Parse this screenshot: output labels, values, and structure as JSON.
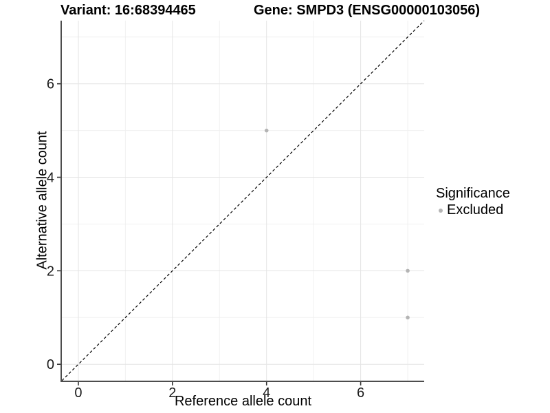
{
  "figure": {
    "title_left": "Variant: 16:68394465",
    "title_right": "Gene: SMPD3 (ENSG00000103056)",
    "x_axis_label": "Reference allele count",
    "y_axis_label": "Alternative allele count"
  },
  "legend": {
    "title": "Significance",
    "items": [
      {
        "label": "Excluded",
        "color": "#b4b4b4"
      }
    ]
  },
  "chart_data": {
    "type": "scatter",
    "title_left": "Variant: 16:68394465",
    "title_right": "Gene: SMPD3 (ENSG00000103056)",
    "xlabel": "Reference allele count",
    "ylabel": "Alternative allele count",
    "xlim": [
      -0.35,
      7.35
    ],
    "ylim": [
      -0.35,
      7.35
    ],
    "x_ticks": [
      0,
      2,
      4,
      6
    ],
    "y_ticks": [
      0,
      2,
      4,
      6
    ],
    "x_minor_ticks": [
      1,
      3,
      5,
      7
    ],
    "y_minor_ticks": [
      1,
      3,
      5,
      7
    ],
    "grid": "major-and-minor",
    "legend_title": "Significance",
    "legend_position": "right",
    "reference_line": {
      "kind": "identity",
      "from": [
        -0.35,
        -0.35
      ],
      "to": [
        7.35,
        7.35
      ],
      "linestyle": "dashed",
      "color": "#000000"
    },
    "series": [
      {
        "name": "Excluded",
        "marker": "circle",
        "color": "#b4b4b4",
        "points": [
          [
            4,
            5
          ],
          [
            7,
            2
          ],
          [
            7,
            1
          ]
        ]
      }
    ],
    "colors": {
      "background": "#ffffff",
      "grid_major": "#e4e4e4",
      "grid_minor": "#f0f0f0",
      "axis_line": "#4d4d4d",
      "tick_mark": "#333333",
      "tick_text": "#1a1a1a",
      "point": "#b4b4b4"
    }
  }
}
